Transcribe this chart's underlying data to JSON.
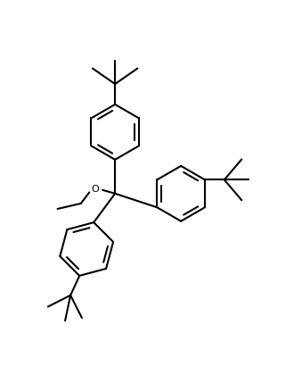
{
  "background_color": "#ffffff",
  "line_color": "#000000",
  "line_width": 1.5,
  "figsize": [
    3.39,
    4.39
  ],
  "dpi": 100,
  "o_label": "O",
  "o_fontsize": 8
}
